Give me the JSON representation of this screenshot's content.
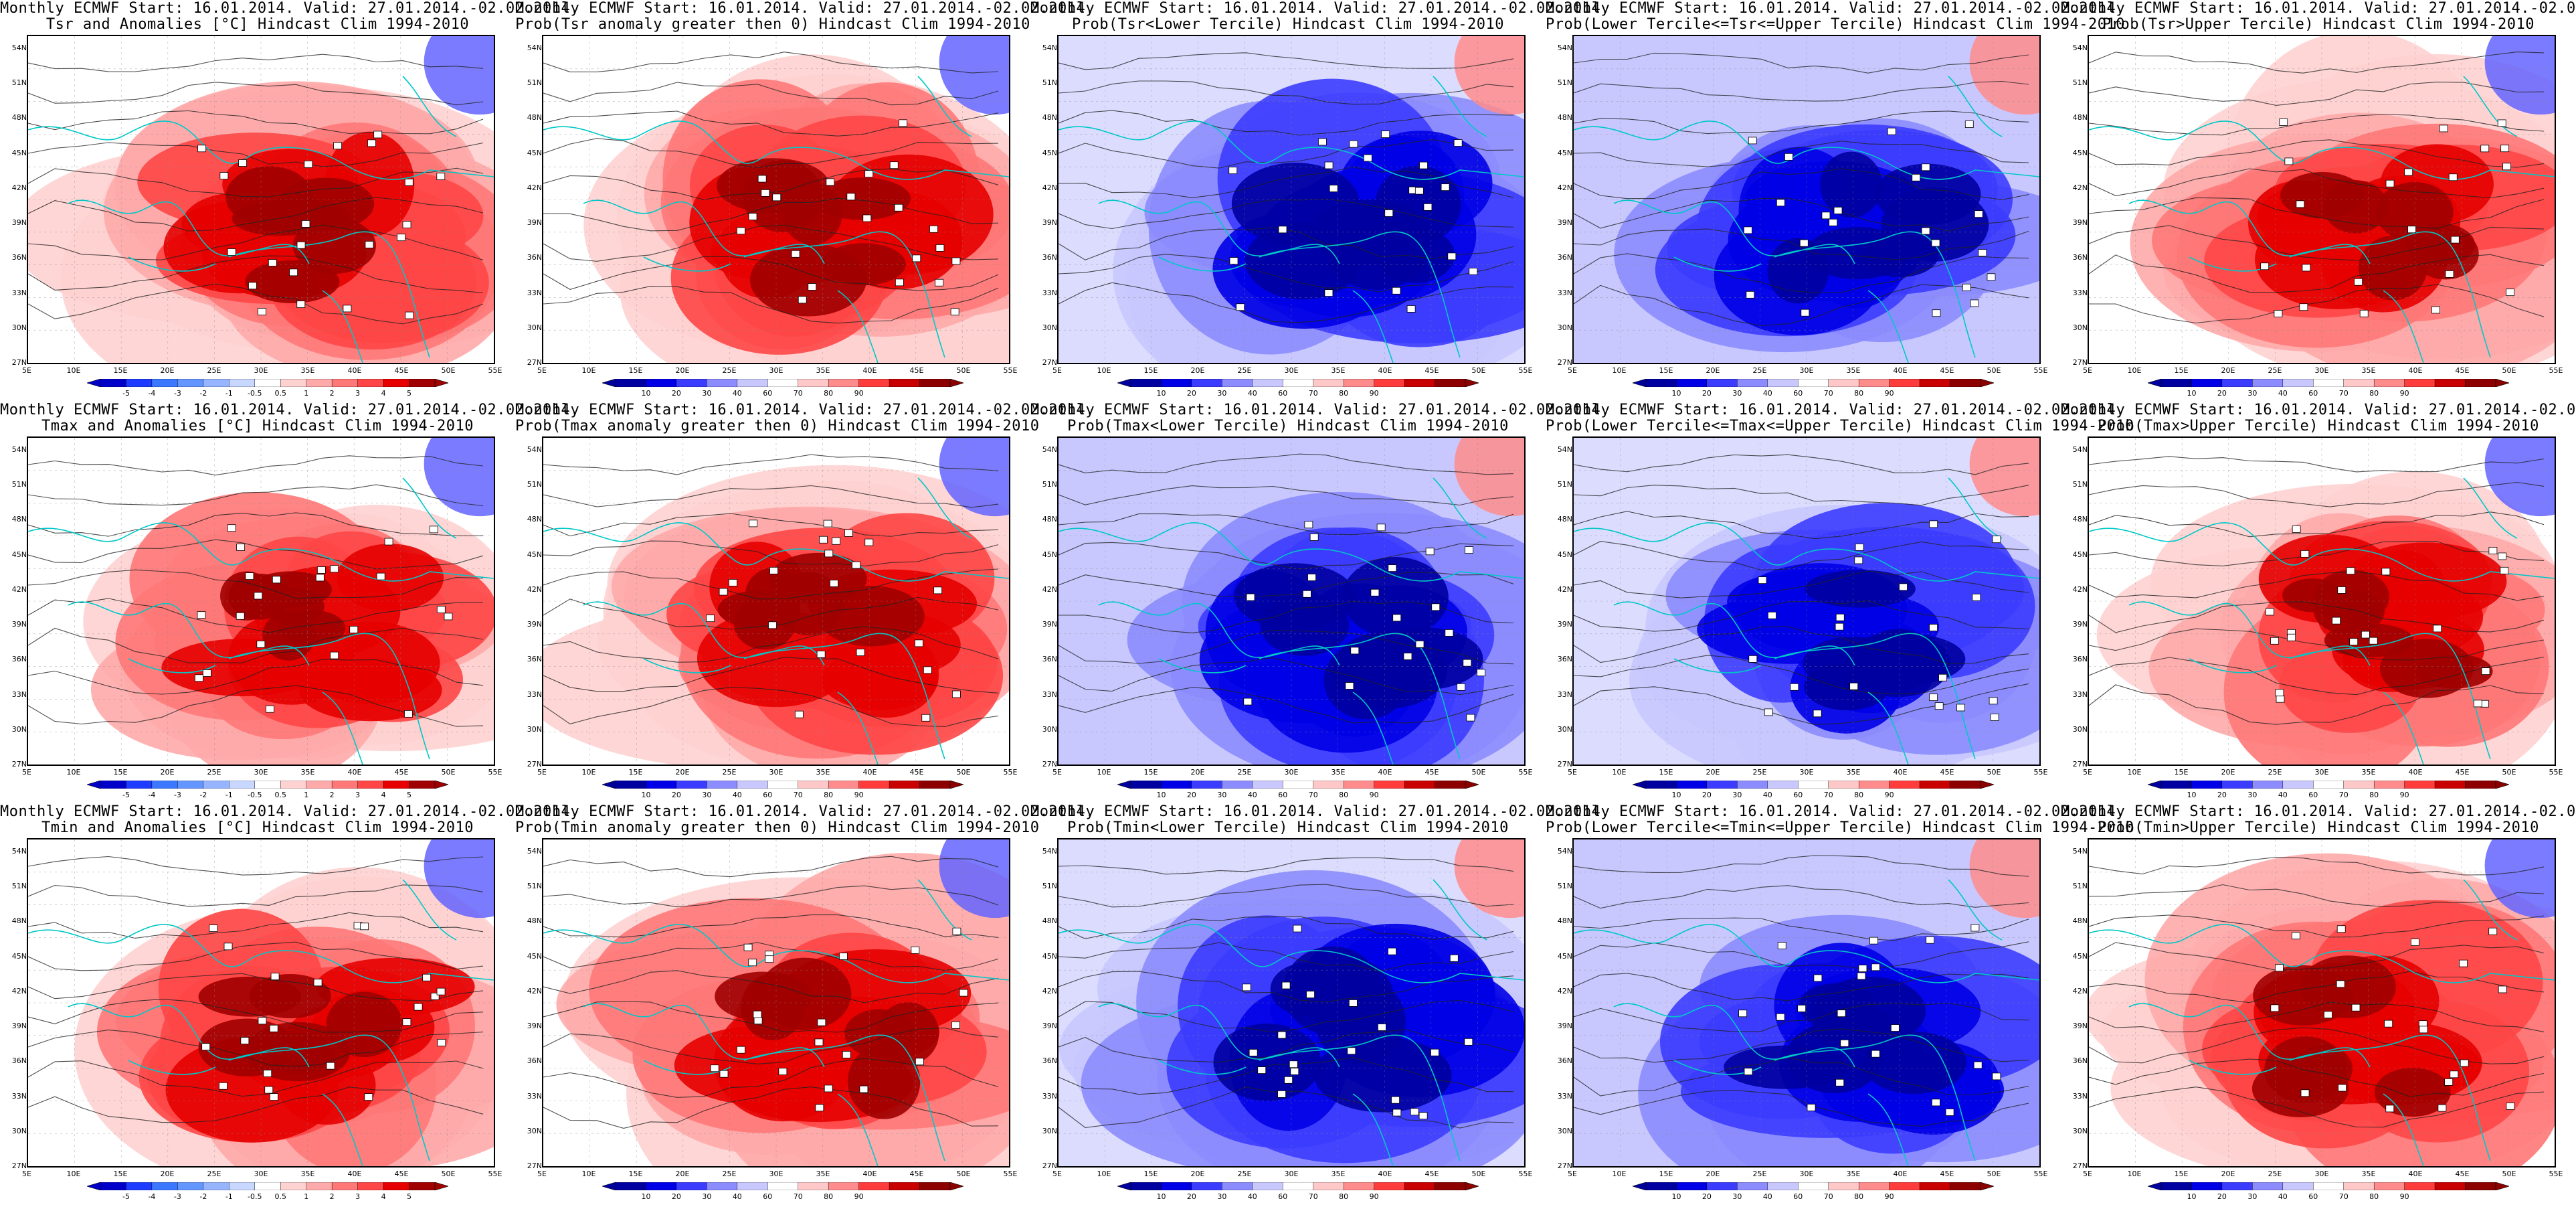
{
  "header_common": "Monthly ECMWF Start: 16.01.2014. Valid: 27.01.2014.-02.02.2014.",
  "lat_labels": [
    "54N",
    "51N",
    "48N",
    "45N",
    "42N",
    "39N",
    "36N",
    "33N",
    "30N",
    "27N"
  ],
  "lon_labels": [
    "5E",
    "10E",
    "15E",
    "20E",
    "25E",
    "30E",
    "35E",
    "40E",
    "45E",
    "50E",
    "55E"
  ],
  "anomaly_scale": {
    "labels": [
      "-5",
      "-4",
      "-3",
      "-2",
      "-1",
      "-0.5",
      "0.5",
      "1",
      "2",
      "3",
      "4",
      "5"
    ],
    "colors": [
      "#0000c8",
      "#1e3cff",
      "#3c78ff",
      "#6496ff",
      "#96b4ff",
      "#c8d7ff",
      "#ffffff",
      "#ffd2d2",
      "#ffaaaa",
      "#ff7878",
      "#ff4646",
      "#e60000",
      "#a00000"
    ]
  },
  "prob_scale": {
    "labels": [
      "10",
      "20",
      "30",
      "40",
      "60",
      "70",
      "80",
      "90"
    ],
    "colors": [
      "#0000a0",
      "#0000e6",
      "#3c3cff",
      "#8c8cff",
      "#c8c8ff",
      "#ffffff",
      "#ffc8c8",
      "#ff8c8c",
      "#ff3c3c",
      "#c80000",
      "#8c0000"
    ]
  },
  "panels": [
    {
      "title": "Tsr and Anomalies [°C] Hindcast Clim 1994-2010",
      "scale": "anomaly",
      "theme": "warm",
      "intensity": 0.75
    },
    {
      "title": "Prob(Tsr anomaly greater then 0) Hindcast Clim 1994-2010",
      "scale": "prob",
      "theme": "warm",
      "intensity": 0.95
    },
    {
      "title": "Prob(Tsr<Lower Tercile) Hindcast Clim 1994-2010",
      "scale": "prob",
      "theme": "cold",
      "intensity": 0.95
    },
    {
      "title": "Prob(Lower Tercile<=Tsr<=Upper Tercile) Hindcast Clim 1994-2010",
      "scale": "prob",
      "theme": "cold",
      "intensity": 0.7
    },
    {
      "title": "Prob(Tsr>Upper Tercile) Hindcast Clim 1994-2010",
      "scale": "prob",
      "theme": "warm",
      "intensity": 0.8
    },
    {
      "title": "Tmax and Anomalies [°C] Hindcast Clim 1994-2010",
      "scale": "anomaly",
      "theme": "warm",
      "intensity": 0.6
    },
    {
      "title": "Prob(Tmax anomaly greater then 0) Hindcast Clim 1994-2010",
      "scale": "prob",
      "theme": "warm",
      "intensity": 0.85
    },
    {
      "title": "Prob(Tmax<Lower Tercile) Hindcast Clim 1994-2010",
      "scale": "prob",
      "theme": "cold",
      "intensity": 0.85
    },
    {
      "title": "Prob(Lower Tercile<=Tmax<=Upper Tercile) Hindcast Clim 1994-2010",
      "scale": "prob",
      "theme": "cold",
      "intensity": 0.65
    },
    {
      "title": "Prob(Tmax>Upper Tercile) Hindcast Clim 1994-2010",
      "scale": "prob",
      "theme": "warm",
      "intensity": 0.7
    },
    {
      "title": "Tmin and Anomalies [°C] Hindcast Clim 1994-2010",
      "scale": "anomaly",
      "theme": "warm",
      "intensity": 0.8
    },
    {
      "title": "Prob(Tmin anomaly greater then 0) Hindcast Clim 1994-2010",
      "scale": "prob",
      "theme": "warm",
      "intensity": 1.0
    },
    {
      "title": "Prob(Tmin<Lower Tercile) Hindcast Clim 1994-2010",
      "scale": "prob",
      "theme": "cold",
      "intensity": 1.0
    },
    {
      "title": "Prob(Lower Tercile<=Tmin<=Upper Tercile) Hindcast Clim 1994-2010",
      "scale": "prob",
      "theme": "cold",
      "intensity": 0.75
    },
    {
      "title": "Prob(Tmin>Upper Tercile) Hindcast Clim 1994-2010",
      "scale": "prob",
      "theme": "warm",
      "intensity": 0.85
    }
  ]
}
